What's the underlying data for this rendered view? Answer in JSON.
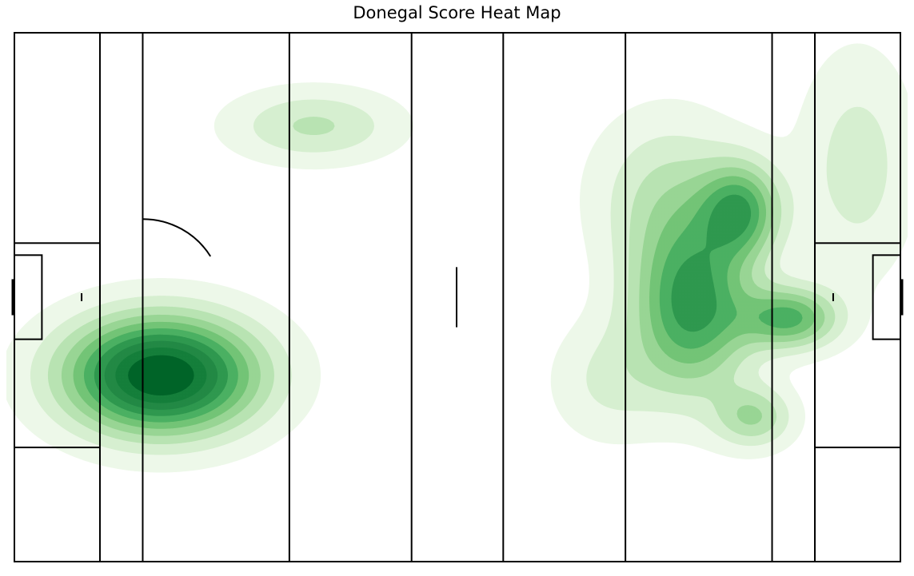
{
  "chart_data": {
    "type": "heatmap",
    "title": "Donegal Score Heat Map",
    "xlabel": "",
    "ylabel": "",
    "xlim": [
      0,
      145
    ],
    "ylim": [
      0,
      88
    ],
    "grid": false,
    "legend": "none",
    "colormap": [
      "#edf8e9",
      "#d6efd0",
      "#b8e3b2",
      "#98d594",
      "#73c476",
      "#4bb062",
      "#2f984f",
      "#228945",
      "#157f3b",
      "#006428"
    ],
    "pitch": {
      "line_color": "#000000",
      "vertical_lines_x": [
        14,
        21,
        45,
        65,
        80,
        100,
        124,
        131
      ],
      "large_rect_x_depth": 14,
      "large_rect_y": [
        19,
        53
      ],
      "small_rect_x_depth": 4.5,
      "small_rect_y": [
        37,
        51
      ],
      "goal_posts_y": [
        41,
        47
      ],
      "penalty_spot_x": 11,
      "semicircle_radius": 13,
      "halfway_mark_y": [
        39,
        49
      ]
    },
    "density_components": [
      {
        "x": 24,
        "y": 31,
        "sx": 11,
        "sy": 6.8,
        "weight": 1.0
      },
      {
        "x": 49,
        "y": 72.5,
        "sx": 9.5,
        "sy": 4.2,
        "weight": 0.26
      },
      {
        "x": 119,
        "y": 58.5,
        "sx": 4.5,
        "sy": 5.5,
        "weight": 0.5
      },
      {
        "x": 111,
        "y": 42.5,
        "sx": 6.8,
        "sy": 10,
        "weight": 0.64
      },
      {
        "x": 127,
        "y": 40.5,
        "sx": 5.5,
        "sy": 3.6,
        "weight": 0.52
      },
      {
        "x": 121,
        "y": 24,
        "sx": 4.5,
        "sy": 3.6,
        "weight": 0.32
      },
      {
        "x": 107,
        "y": 61,
        "sx": 8.5,
        "sy": 9.5,
        "weight": 0.24
      },
      {
        "x": 138,
        "y": 66,
        "sx": 6.5,
        "sy": 13,
        "weight": 0.2
      },
      {
        "x": 97,
        "y": 30,
        "sx": 6.5,
        "sy": 7,
        "weight": 0.16
      }
    ]
  }
}
